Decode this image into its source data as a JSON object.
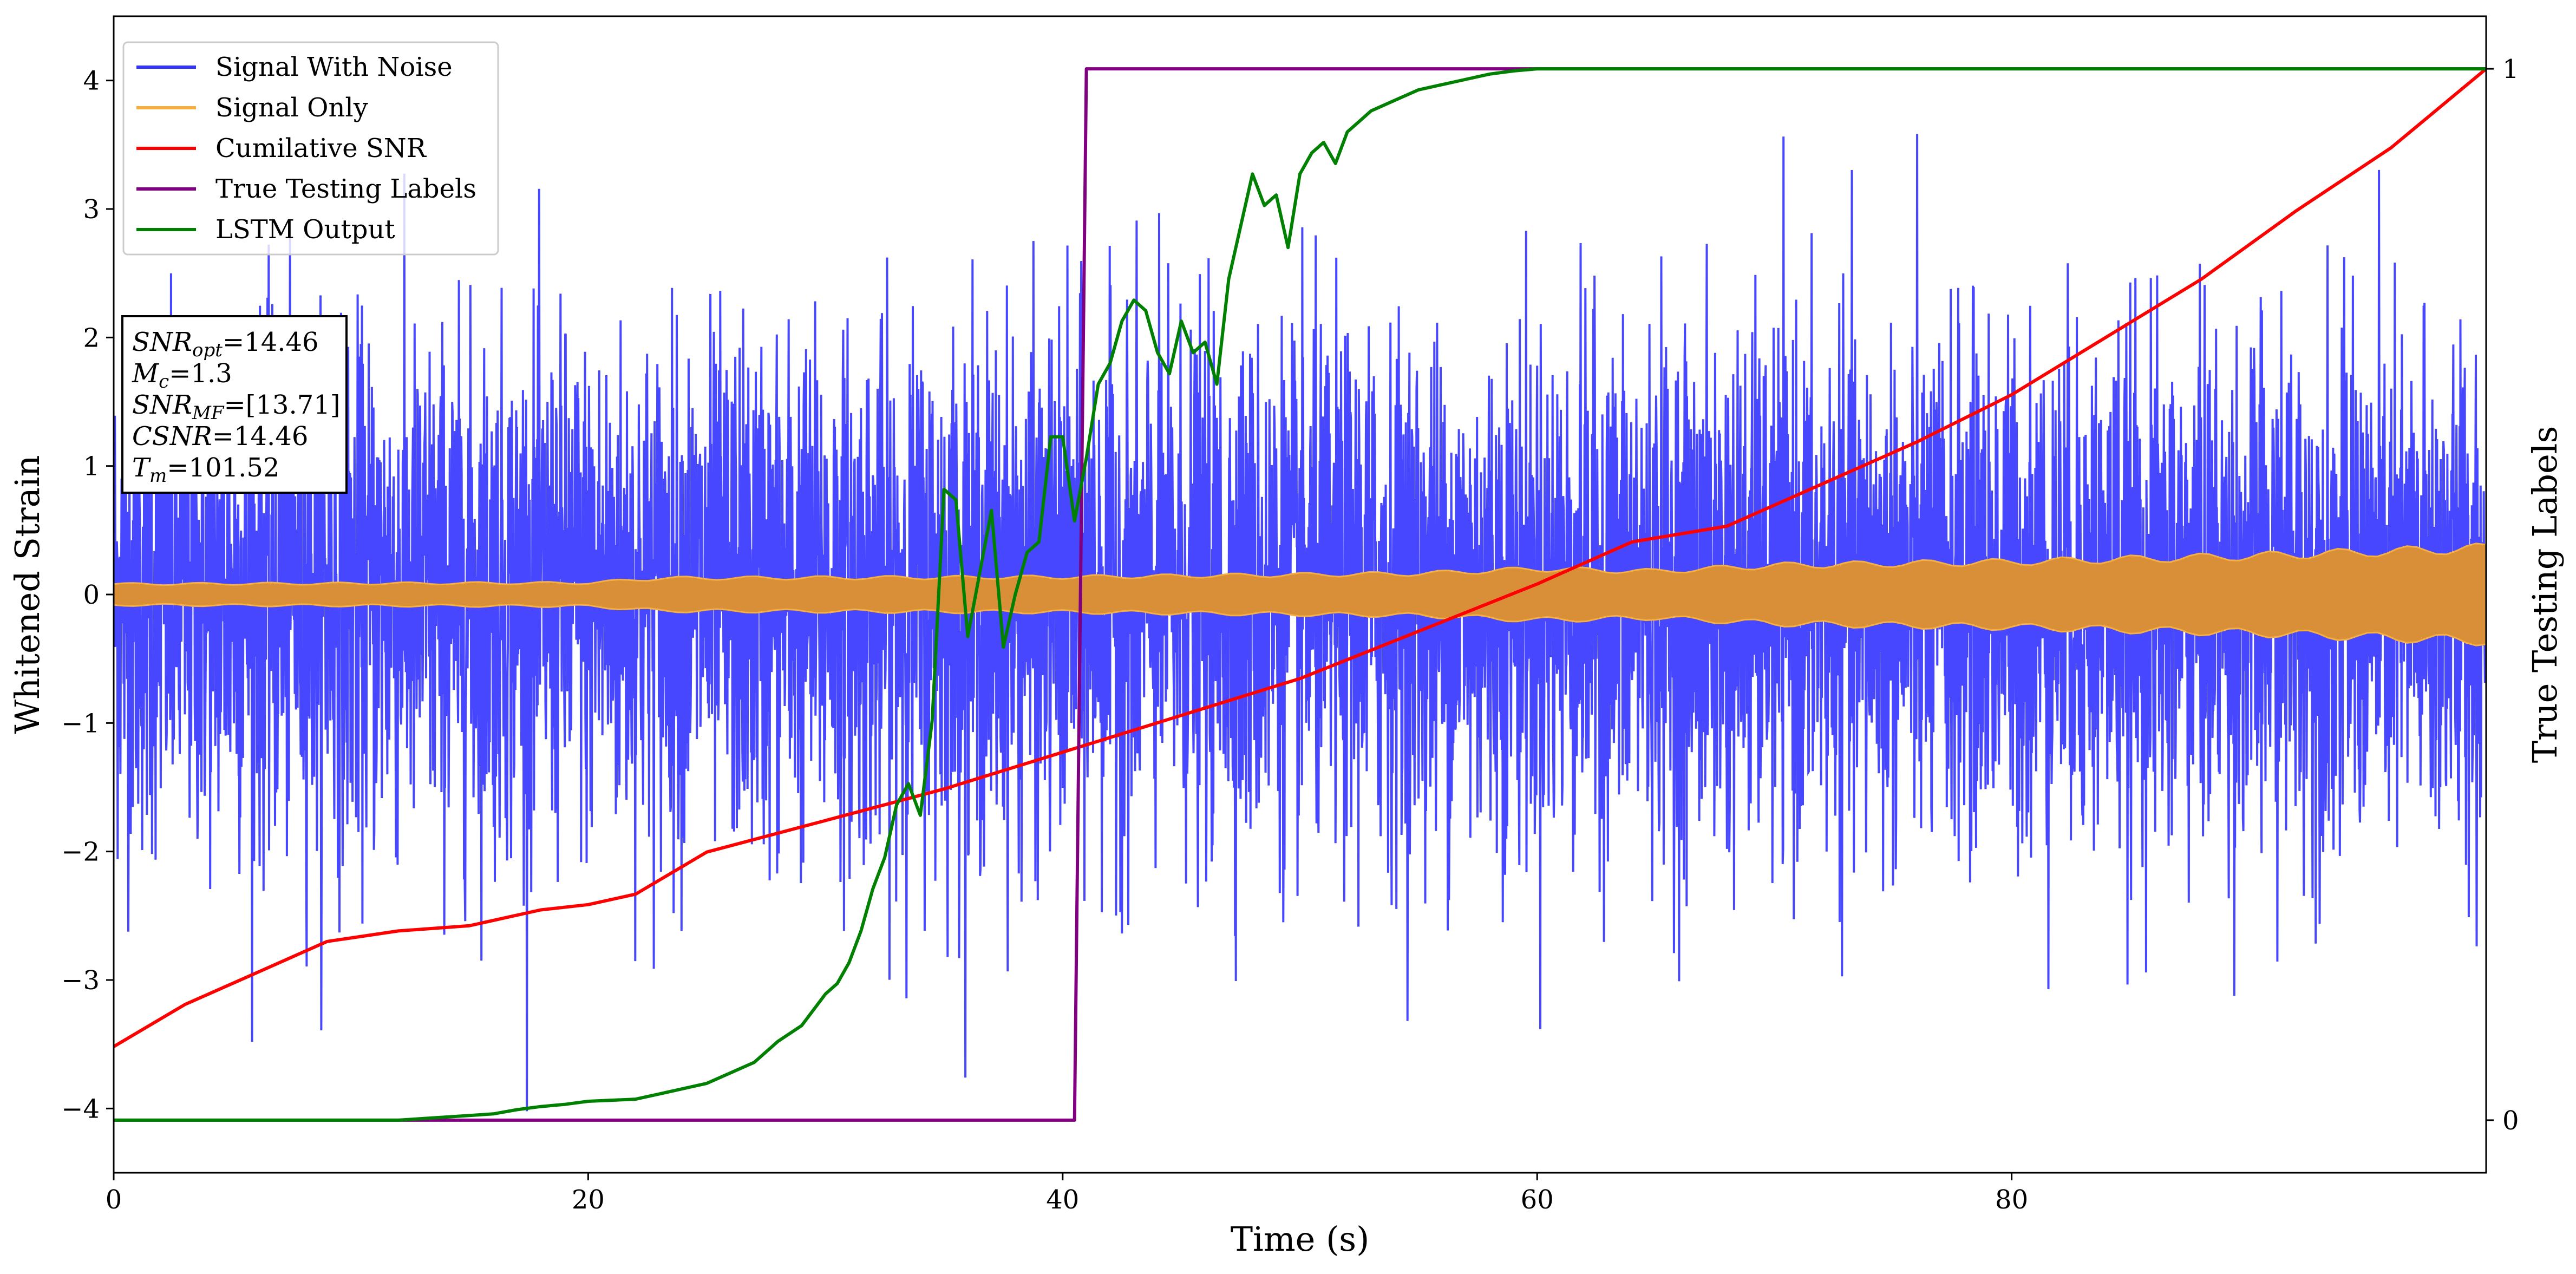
{
  "chart_data": {
    "type": "line",
    "xlabel": "Time (s)",
    "ylabel": "Whitened Strain",
    "y2label": "True Testing Labels",
    "xlim": [
      0,
      100
    ],
    "ylim": [
      -4.5,
      4.5
    ],
    "y2lim": [
      -0.05,
      1.05
    ],
    "x_ticks": [
      {
        "value": 0,
        "label": "0"
      },
      {
        "value": 20,
        "label": "20"
      },
      {
        "value": 40,
        "label": "40"
      },
      {
        "value": 60,
        "label": "60"
      },
      {
        "value": 80,
        "label": "80"
      }
    ],
    "y_ticks": [
      {
        "value": -4,
        "label": "−4"
      },
      {
        "value": -3,
        "label": "−3"
      },
      {
        "value": -2,
        "label": "−2"
      },
      {
        "value": -1,
        "label": "−1"
      },
      {
        "value": 0,
        "label": "0"
      },
      {
        "value": 1,
        "label": "1"
      },
      {
        "value": 2,
        "label": "2"
      },
      {
        "value": 3,
        "label": "3"
      },
      {
        "value": 4,
        "label": "4"
      }
    ],
    "y2_ticks": [
      {
        "value": 0,
        "label": "0"
      },
      {
        "value": 1,
        "label": "1"
      }
    ],
    "legend_position": "top-left",
    "grid": false,
    "series": [
      {
        "name": "Signal With Noise",
        "color": "#3333ff",
        "axis": "left",
        "kind": "noise",
        "approx_std": 1.0,
        "approx_range": [
          -4.1,
          4.0
        ]
      },
      {
        "name": "Signal Only",
        "color": "#f5b041",
        "fill_color": "#d98e38",
        "axis": "left",
        "kind": "envelope",
        "envelope_x": [
          0,
          20,
          23,
          40,
          55,
          60,
          65,
          70,
          80,
          90,
          100
        ],
        "envelope_amplitude": [
          0.09,
          0.1,
          0.14,
          0.15,
          0.18,
          0.22,
          0.2,
          0.25,
          0.28,
          0.33,
          0.4
        ]
      },
      {
        "name": "Cumilative SNR",
        "color": "#ff0000",
        "axis": "right",
        "x": [
          0,
          3,
          6,
          9,
          12,
          15,
          18,
          20,
          22,
          25,
          30,
          35,
          40,
          45,
          50,
          55,
          60,
          64,
          68,
          72,
          76,
          80,
          84,
          88,
          92,
          96,
          100
        ],
        "y": [
          0.07,
          0.11,
          0.14,
          0.17,
          0.18,
          0.185,
          0.2,
          0.205,
          0.215,
          0.255,
          0.285,
          0.315,
          0.35,
          0.385,
          0.42,
          0.465,
          0.51,
          0.55,
          0.565,
          0.605,
          0.645,
          0.69,
          0.745,
          0.8,
          0.865,
          0.925,
          1.0
        ]
      },
      {
        "name": "True Testing Labels",
        "color": "#800080",
        "axis": "right",
        "x": [
          0,
          40.5,
          41.0,
          100
        ],
        "y": [
          0,
          0,
          1,
          1
        ]
      },
      {
        "name": "LSTM Output",
        "color": "#008000",
        "axis": "right",
        "x": [
          0,
          12,
          14,
          16,
          17,
          18,
          19,
          20,
          22,
          23,
          24,
          25,
          26,
          27,
          28,
          29,
          30,
          30.5,
          31,
          31.5,
          32,
          32.5,
          33,
          33.5,
          34,
          34.5,
          35,
          35.5,
          36,
          36.5,
          37,
          37.5,
          38,
          38.5,
          39,
          39.5,
          40,
          40.5,
          41,
          41.5,
          42,
          42.5,
          43,
          43.5,
          44,
          44.5,
          45,
          45.5,
          46,
          46.5,
          47,
          47.5,
          48,
          48.5,
          49,
          49.5,
          50,
          50.5,
          51,
          51.5,
          52,
          52.5,
          53,
          54,
          55,
          56,
          57,
          58,
          59,
          60,
          61,
          62,
          63,
          64,
          65,
          100
        ],
        "y": [
          0.0,
          0.0,
          0.003,
          0.006,
          0.01,
          0.013,
          0.015,
          0.018,
          0.02,
          0.025,
          0.03,
          0.035,
          0.045,
          0.055,
          0.075,
          0.09,
          0.12,
          0.13,
          0.15,
          0.18,
          0.22,
          0.25,
          0.3,
          0.32,
          0.29,
          0.38,
          0.6,
          0.59,
          0.46,
          0.52,
          0.58,
          0.45,
          0.5,
          0.54,
          0.55,
          0.65,
          0.65,
          0.57,
          0.63,
          0.7,
          0.72,
          0.76,
          0.78,
          0.77,
          0.73,
          0.71,
          0.76,
          0.73,
          0.74,
          0.7,
          0.8,
          0.85,
          0.9,
          0.87,
          0.88,
          0.83,
          0.9,
          0.92,
          0.93,
          0.91,
          0.94,
          0.95,
          0.96,
          0.97,
          0.98,
          0.985,
          0.99,
          0.995,
          0.998,
          1.0,
          1.0,
          1.0,
          1.0,
          1.0,
          1.0,
          1.0
        ]
      }
    ],
    "annotation_lines": [
      {
        "main": "SNR",
        "sub": "opt",
        "rest": "=14.46"
      },
      {
        "main": "M",
        "sub": "c",
        "rest": "=1.3"
      },
      {
        "main": "SNR",
        "sub": "MF",
        "rest": "=[13.71]"
      },
      {
        "main": "CSNR",
        "sub": "",
        "rest": "=14.46"
      },
      {
        "main": "T",
        "sub": "m",
        "rest": "=101.52"
      }
    ]
  }
}
